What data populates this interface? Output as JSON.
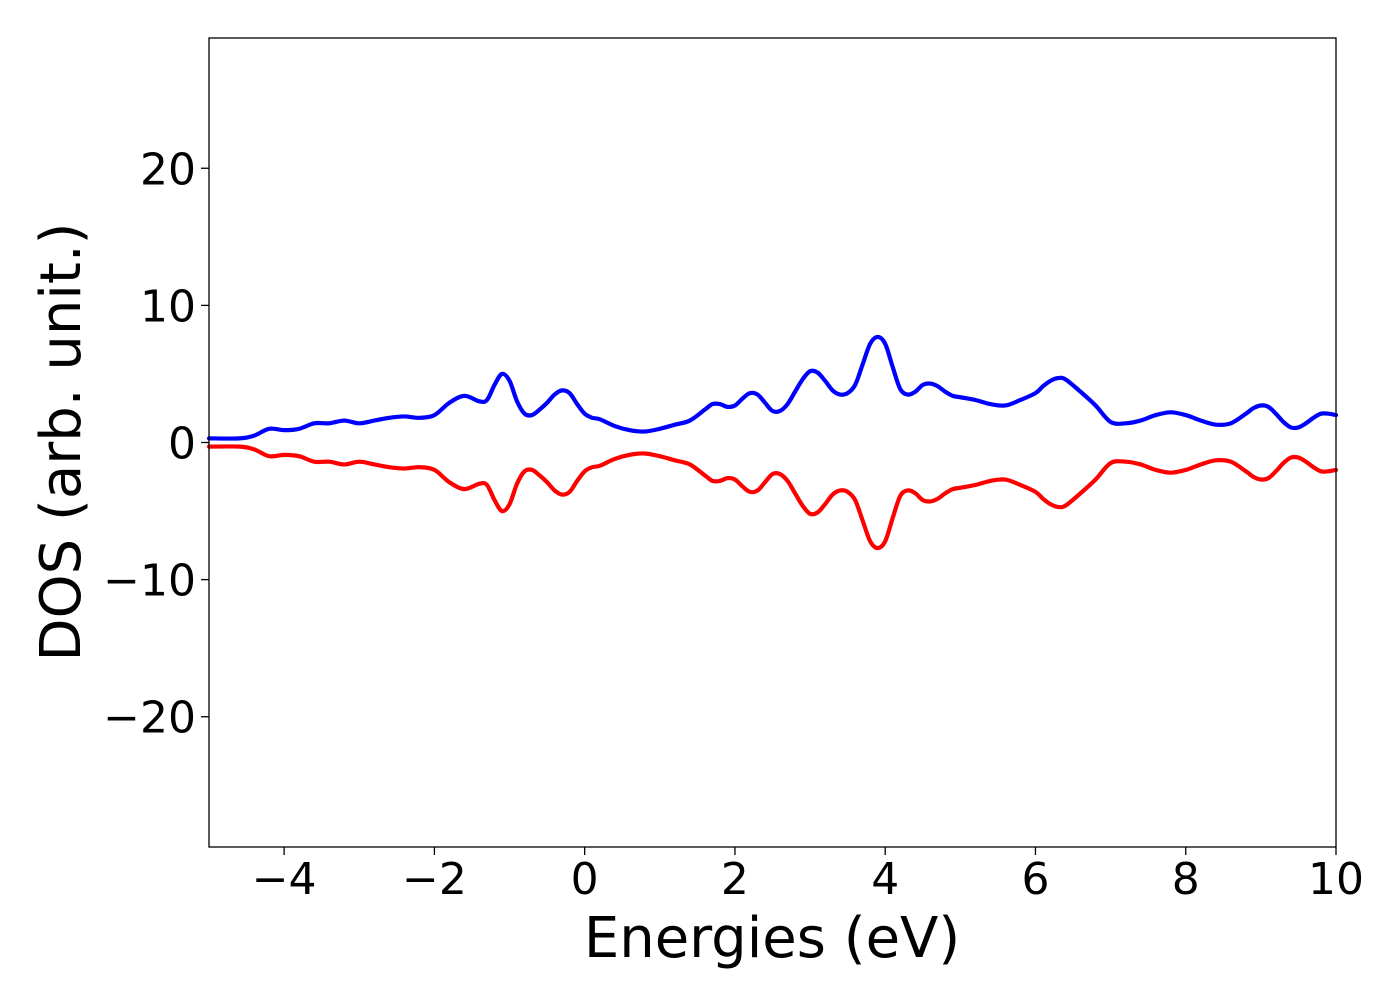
{
  "chart_data": {
    "type": "line",
    "title": "",
    "xlabel": "Energies (eV)",
    "ylabel": "DOS (arb. unit.)",
    "xlim": [
      -5,
      10
    ],
    "ylim": [
      -29.5,
      29.5
    ],
    "grid": false,
    "x_ticks": [
      -4,
      -2,
      0,
      2,
      4,
      6,
      8,
      10
    ],
    "x_tick_labels": [
      "−4",
      "−2",
      "0",
      "2",
      "4",
      "6",
      "8",
      "10"
    ],
    "y_ticks": [
      -20,
      -10,
      0,
      10,
      20
    ],
    "y_tick_labels": [
      "−20",
      "−10",
      "0",
      "10",
      "20"
    ],
    "series": [
      {
        "color": "#0000ff",
        "x": [
          -5.0,
          -4.6,
          -4.4,
          -4.2,
          -4.0,
          -3.8,
          -3.6,
          -3.4,
          -3.2,
          -3.0,
          -2.8,
          -2.6,
          -2.4,
          -2.2,
          -2.0,
          -1.8,
          -1.6,
          -1.4,
          -1.3,
          -1.2,
          -1.1,
          -1.0,
          -0.9,
          -0.8,
          -0.7,
          -0.6,
          -0.5,
          -0.4,
          -0.3,
          -0.2,
          -0.1,
          0.0,
          0.1,
          0.2,
          0.4,
          0.6,
          0.8,
          1.0,
          1.2,
          1.4,
          1.6,
          1.7,
          1.8,
          1.9,
          2.0,
          2.1,
          2.2,
          2.3,
          2.4,
          2.5,
          2.6,
          2.7,
          2.8,
          2.9,
          3.0,
          3.1,
          3.2,
          3.3,
          3.4,
          3.5,
          3.6,
          3.7,
          3.8,
          3.9,
          4.0,
          4.1,
          4.2,
          4.3,
          4.4,
          4.5,
          4.6,
          4.7,
          4.8,
          4.9,
          5.0,
          5.2,
          5.4,
          5.6,
          5.8,
          6.0,
          6.1,
          6.2,
          6.3,
          6.4,
          6.6,
          6.8,
          7.0,
          7.2,
          7.4,
          7.6,
          7.8,
          8.0,
          8.2,
          8.4,
          8.6,
          8.8,
          8.9,
          9.0,
          9.1,
          9.2,
          9.3,
          9.4,
          9.5,
          9.6,
          9.7,
          9.8,
          9.9,
          10.0
        ],
        "values": [
          0.3,
          0.3,
          0.5,
          1.0,
          0.9,
          1.0,
          1.4,
          1.4,
          1.6,
          1.4,
          1.6,
          1.8,
          1.9,
          1.8,
          2.0,
          2.9,
          3.4,
          3.0,
          3.1,
          4.2,
          5.0,
          4.5,
          3.0,
          2.1,
          2.0,
          2.4,
          2.9,
          3.5,
          3.8,
          3.6,
          2.8,
          2.1,
          1.8,
          1.7,
          1.2,
          0.9,
          0.8,
          1.0,
          1.3,
          1.6,
          2.4,
          2.8,
          2.8,
          2.6,
          2.7,
          3.2,
          3.6,
          3.5,
          2.9,
          2.3,
          2.3,
          2.8,
          3.7,
          4.6,
          5.2,
          5.1,
          4.5,
          3.8,
          3.5,
          3.6,
          4.2,
          5.7,
          7.2,
          7.7,
          7.2,
          5.5,
          3.9,
          3.5,
          3.7,
          4.2,
          4.3,
          4.1,
          3.7,
          3.4,
          3.3,
          3.1,
          2.8,
          2.7,
          3.1,
          3.6,
          4.1,
          4.5,
          4.7,
          4.6,
          3.7,
          2.7,
          1.5,
          1.4,
          1.6,
          2.0,
          2.2,
          2.0,
          1.6,
          1.3,
          1.4,
          2.1,
          2.5,
          2.7,
          2.6,
          2.1,
          1.5,
          1.1,
          1.1,
          1.4,
          1.8,
          2.1,
          2.1,
          2.0
        ]
      },
      {
        "color": "#ff0000",
        "x": [
          -5.0,
          -4.6,
          -4.4,
          -4.2,
          -4.0,
          -3.8,
          -3.6,
          -3.4,
          -3.2,
          -3.0,
          -2.8,
          -2.6,
          -2.4,
          -2.2,
          -2.0,
          -1.8,
          -1.6,
          -1.4,
          -1.3,
          -1.2,
          -1.1,
          -1.0,
          -0.9,
          -0.8,
          -0.7,
          -0.6,
          -0.5,
          -0.4,
          -0.3,
          -0.2,
          -0.1,
          0.0,
          0.1,
          0.2,
          0.4,
          0.6,
          0.8,
          1.0,
          1.2,
          1.4,
          1.6,
          1.7,
          1.8,
          1.9,
          2.0,
          2.1,
          2.2,
          2.3,
          2.4,
          2.5,
          2.6,
          2.7,
          2.8,
          2.9,
          3.0,
          3.1,
          3.2,
          3.3,
          3.4,
          3.5,
          3.6,
          3.7,
          3.8,
          3.9,
          4.0,
          4.1,
          4.2,
          4.3,
          4.4,
          4.5,
          4.6,
          4.7,
          4.8,
          4.9,
          5.0,
          5.2,
          5.4,
          5.6,
          5.8,
          6.0,
          6.1,
          6.2,
          6.3,
          6.4,
          6.6,
          6.8,
          7.0,
          7.2,
          7.4,
          7.6,
          7.8,
          8.0,
          8.2,
          8.4,
          8.6,
          8.8,
          8.9,
          9.0,
          9.1,
          9.2,
          9.3,
          9.4,
          9.5,
          9.6,
          9.7,
          9.8,
          9.9,
          10.0
        ],
        "values": [
          -0.3,
          -0.3,
          -0.5,
          -1.0,
          -0.9,
          -1.0,
          -1.4,
          -1.4,
          -1.6,
          -1.4,
          -1.6,
          -1.8,
          -1.9,
          -1.8,
          -2.0,
          -2.9,
          -3.4,
          -3.0,
          -3.1,
          -4.2,
          -5.0,
          -4.5,
          -3.0,
          -2.1,
          -2.0,
          -2.4,
          -2.9,
          -3.5,
          -3.8,
          -3.6,
          -2.8,
          -2.1,
          -1.8,
          -1.7,
          -1.2,
          -0.9,
          -0.8,
          -1.0,
          -1.3,
          -1.6,
          -2.4,
          -2.8,
          -2.8,
          -2.6,
          -2.7,
          -3.2,
          -3.6,
          -3.5,
          -2.9,
          -2.3,
          -2.3,
          -2.8,
          -3.7,
          -4.6,
          -5.2,
          -5.1,
          -4.5,
          -3.8,
          -3.5,
          -3.6,
          -4.2,
          -5.7,
          -7.2,
          -7.7,
          -7.2,
          -5.5,
          -3.9,
          -3.5,
          -3.7,
          -4.2,
          -4.3,
          -4.1,
          -3.7,
          -3.4,
          -3.3,
          -3.1,
          -2.8,
          -2.7,
          -3.1,
          -3.6,
          -4.1,
          -4.5,
          -4.7,
          -4.6,
          -3.7,
          -2.7,
          -1.5,
          -1.4,
          -1.6,
          -2.0,
          -2.2,
          -2.0,
          -1.6,
          -1.3,
          -1.4,
          -2.1,
          -2.5,
          -2.7,
          -2.6,
          -2.1,
          -1.5,
          -1.1,
          -1.1,
          -1.4,
          -1.8,
          -2.1,
          -2.1,
          -2.0
        ]
      }
    ]
  }
}
